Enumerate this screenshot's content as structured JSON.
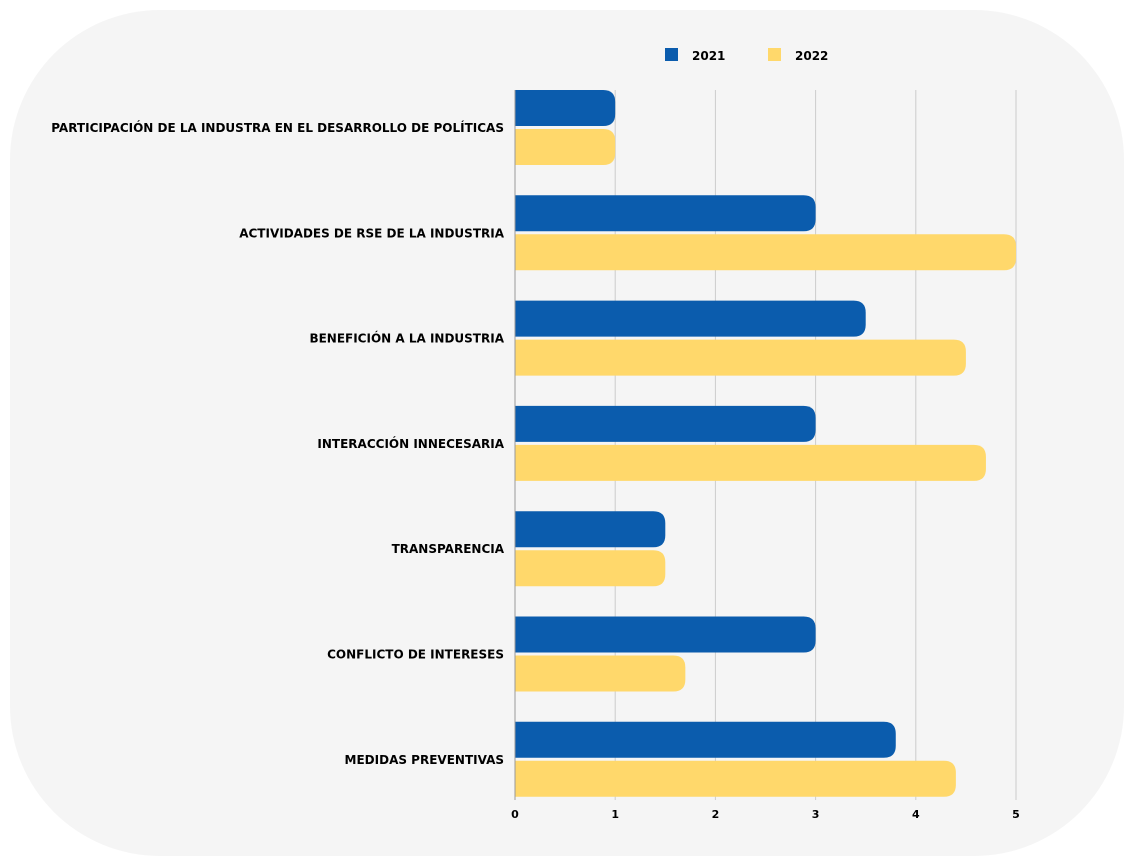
{
  "colors": {
    "background": "#f5f5f5",
    "grid": "#cccccc",
    "series_2021": "#0b5cad",
    "series_2022": "#ffd86b"
  },
  "chart_data": {
    "type": "bar",
    "orientation": "horizontal",
    "title": "",
    "xlabel": "",
    "ylabel": "",
    "xlim": [
      0,
      5
    ],
    "xticks": [
      0,
      1,
      2,
      3,
      4,
      5
    ],
    "grid": "vertical",
    "legend": "top",
    "categories": [
      "PARTICIPACIÓN DE LA INDUSTRA EN EL DESARROLLO DE POLÍTICAS",
      "ACTIVIDADES DE RSE DE LA INDUSTRIA",
      "BENEFICIÓN A LA INDUSTRIA",
      "INTERACCIÓN INNECESARIA",
      "TRANSPARENCIA",
      "CONFLICTO DE INTERESES",
      "MEDIDAS PREVENTIVAS"
    ],
    "series": [
      {
        "name": "2021",
        "color": "#0b5cad",
        "values": [
          1,
          3,
          3.5,
          3,
          1.5,
          3,
          3.8
        ]
      },
      {
        "name": "2022",
        "color": "#ffd86b",
        "values": [
          1,
          5,
          4.5,
          4.7,
          1.5,
          1.7,
          4.4
        ]
      }
    ]
  }
}
